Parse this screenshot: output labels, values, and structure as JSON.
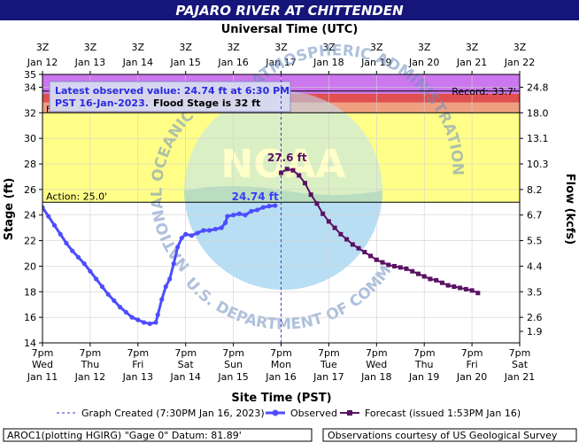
{
  "title": "PAJARO RIVER AT CHITTENDEN",
  "top_axis_title": "Universal Time (UTC)",
  "bottom_axis_title": "Site Time (PST)",
  "left_axis_title": "Stage (ft)",
  "right_axis_title": "Flow (kcfs)",
  "info_box": {
    "line1": "Latest observed value: 24.74 ft at 6:30 PM",
    "line2_date": "PST 16-Jan-2023.",
    "line2_flood": "Flood Stage is 32 ft"
  },
  "watermark": {
    "left_arc": "NATIONAL OCEANIC",
    "right_arc": "ATMOSPHERIC ADMINISTRATION",
    "bottom_arc": "U.S. DEPARTMENT OF COMMERCE",
    "logo_text": "NOAA"
  },
  "legend": {
    "created": "Graph Created (7:30PM Jan 16, 2023)",
    "observed": "Observed",
    "forecast": "Forecast (issued 1:53PM Jan 16)"
  },
  "footer": {
    "left": "AROC1(plotting HGIRG) \"Gage 0\" Datum: 81.89'",
    "right": "Observations courtesy of US Geological Survey"
  },
  "colors": {
    "title_bg": "#15157a",
    "observed": "#4d4dff",
    "forecast": "#5a1163",
    "action_band": "#ffff88",
    "minor_band": "#f0a080",
    "moderate_band": "#e05050",
    "major_band": "#cc77ee"
  },
  "chart_data": {
    "type": "line",
    "y_range": [
      14,
      35
    ],
    "y_ticks": [
      14,
      16,
      18,
      20,
      22,
      24,
      26,
      28,
      30,
      32,
      34,
      35
    ],
    "right_ticks": [
      {
        "stage": 14.9,
        "label": "1.9"
      },
      {
        "stage": 16.0,
        "label": "2.6"
      },
      {
        "stage": 18.0,
        "label": "3.5"
      },
      {
        "stage": 20.0,
        "label": "4.4"
      },
      {
        "stage": 22.0,
        "label": "5.5"
      },
      {
        "stage": 24.0,
        "label": "6.7"
      },
      {
        "stage": 26.0,
        "label": "8.2"
      },
      {
        "stage": 28.0,
        "label": "10.3"
      },
      {
        "stage": 30.0,
        "label": "13.1"
      },
      {
        "stage": 32.0,
        "label": "18.0"
      },
      {
        "stage": 34.0,
        "label": "24.8"
      }
    ],
    "x_range": [
      0,
      240
    ],
    "bottom_ticks": [
      {
        "h": 0,
        "t": "7pm",
        "d": "Wed",
        "dt": "Jan 11"
      },
      {
        "h": 24,
        "t": "7pm",
        "d": "Thu",
        "dt": "Jan 12"
      },
      {
        "h": 48,
        "t": "7pm",
        "d": "Fri",
        "dt": "Jan 13"
      },
      {
        "h": 72,
        "t": "7pm",
        "d": "Sat",
        "dt": "Jan 14"
      },
      {
        "h": 96,
        "t": "7pm",
        "d": "Sun",
        "dt": "Jan 15"
      },
      {
        "h": 120,
        "t": "7pm",
        "d": "Mon",
        "dt": "Jan 16"
      },
      {
        "h": 144,
        "t": "7pm",
        "d": "Tue",
        "dt": "Jan 17"
      },
      {
        "h": 168,
        "t": "7pm",
        "d": "Wed",
        "dt": "Jan 18"
      },
      {
        "h": 192,
        "t": "7pm",
        "d": "Thu",
        "dt": "Jan 19"
      },
      {
        "h": 216,
        "t": "7pm",
        "d": "Fri",
        "dt": "Jan 20"
      },
      {
        "h": 240,
        "t": "7pm",
        "d": "Sat",
        "dt": "Jan 21"
      }
    ],
    "top_ticks": [
      {
        "h": 0,
        "t": "3Z",
        "dt": "Jan 12"
      },
      {
        "h": 24,
        "t": "3Z",
        "dt": "Jan 13"
      },
      {
        "h": 48,
        "t": "3Z",
        "dt": "Jan 14"
      },
      {
        "h": 72,
        "t": "3Z",
        "dt": "Jan 15"
      },
      {
        "h": 96,
        "t": "3Z",
        "dt": "Jan 16"
      },
      {
        "h": 120,
        "t": "3Z",
        "dt": "Jan 17"
      },
      {
        "h": 144,
        "t": "3Z",
        "dt": "Jan 18"
      },
      {
        "h": 168,
        "t": "3Z",
        "dt": "Jan 19"
      },
      {
        "h": 192,
        "t": "3Z",
        "dt": "Jan 20"
      },
      {
        "h": 216,
        "t": "3Z",
        "dt": "Jan 21"
      },
      {
        "h": 240,
        "t": "3Z",
        "dt": "Jan 22"
      }
    ],
    "thresholds": {
      "action": {
        "value": 25.0,
        "label": "Action: 25.0'"
      },
      "flood": {
        "value": 32.0,
        "label": "Flood: 32.0'"
      },
      "moderate": {
        "value": 32.8
      },
      "major": {
        "value": 33.5
      },
      "record": {
        "value": 33.7,
        "label": "Record: 33.7'"
      }
    },
    "graph_created_h": 120,
    "observed_label": "24.74 ft",
    "forecast_peak_label": "27.6 ft",
    "series": [
      {
        "name": "Observed",
        "points": [
          [
            0,
            24.6
          ],
          [
            3,
            23.9
          ],
          [
            6,
            23.2
          ],
          [
            9,
            22.5
          ],
          [
            12,
            21.8
          ],
          [
            15,
            21.2
          ],
          [
            18,
            20.7
          ],
          [
            21,
            20.2
          ],
          [
            24,
            19.6
          ],
          [
            27,
            19.0
          ],
          [
            30,
            18.4
          ],
          [
            33,
            17.8
          ],
          [
            36,
            17.3
          ],
          [
            39,
            16.8
          ],
          [
            42,
            16.4
          ],
          [
            45,
            16.0
          ],
          [
            48,
            15.8
          ],
          [
            51,
            15.6
          ],
          [
            54,
            15.5
          ],
          [
            57,
            15.6
          ],
          [
            58,
            16.2
          ],
          [
            60,
            17.4
          ],
          [
            62,
            18.4
          ],
          [
            64,
            19.0
          ],
          [
            66,
            20.2
          ],
          [
            68,
            21.5
          ],
          [
            70,
            22.2
          ],
          [
            72,
            22.5
          ],
          [
            75,
            22.4
          ],
          [
            78,
            22.6
          ],
          [
            81,
            22.8
          ],
          [
            84,
            22.8
          ],
          [
            87,
            22.9
          ],
          [
            90,
            23.0
          ],
          [
            92,
            23.4
          ],
          [
            93,
            23.9
          ],
          [
            96,
            24.0
          ],
          [
            99,
            24.1
          ],
          [
            102,
            24.0
          ],
          [
            105,
            24.3
          ],
          [
            108,
            24.4
          ],
          [
            111,
            24.6
          ],
          [
            114,
            24.7
          ],
          [
            117,
            24.74
          ]
        ]
      },
      {
        "name": "Forecast",
        "points": [
          [
            120,
            27.3
          ],
          [
            123,
            27.6
          ],
          [
            126,
            27.5
          ],
          [
            129,
            27.1
          ],
          [
            132,
            26.5
          ],
          [
            135,
            25.6
          ],
          [
            138,
            24.9
          ],
          [
            141,
            24.1
          ],
          [
            144,
            23.5
          ],
          [
            147,
            23.0
          ],
          [
            150,
            22.5
          ],
          [
            153,
            22.1
          ],
          [
            156,
            21.7
          ],
          [
            159,
            21.4
          ],
          [
            162,
            21.1
          ],
          [
            165,
            20.8
          ],
          [
            168,
            20.5
          ],
          [
            171,
            20.3
          ],
          [
            174,
            20.1
          ],
          [
            177,
            20.0
          ],
          [
            180,
            19.9
          ],
          [
            183,
            19.8
          ],
          [
            186,
            19.6
          ],
          [
            189,
            19.4
          ],
          [
            192,
            19.2
          ],
          [
            195,
            19.0
          ],
          [
            198,
            18.9
          ],
          [
            201,
            18.7
          ],
          [
            204,
            18.5
          ],
          [
            207,
            18.4
          ],
          [
            210,
            18.3
          ],
          [
            213,
            18.2
          ],
          [
            216,
            18.1
          ],
          [
            219,
            17.9
          ]
        ]
      }
    ]
  }
}
